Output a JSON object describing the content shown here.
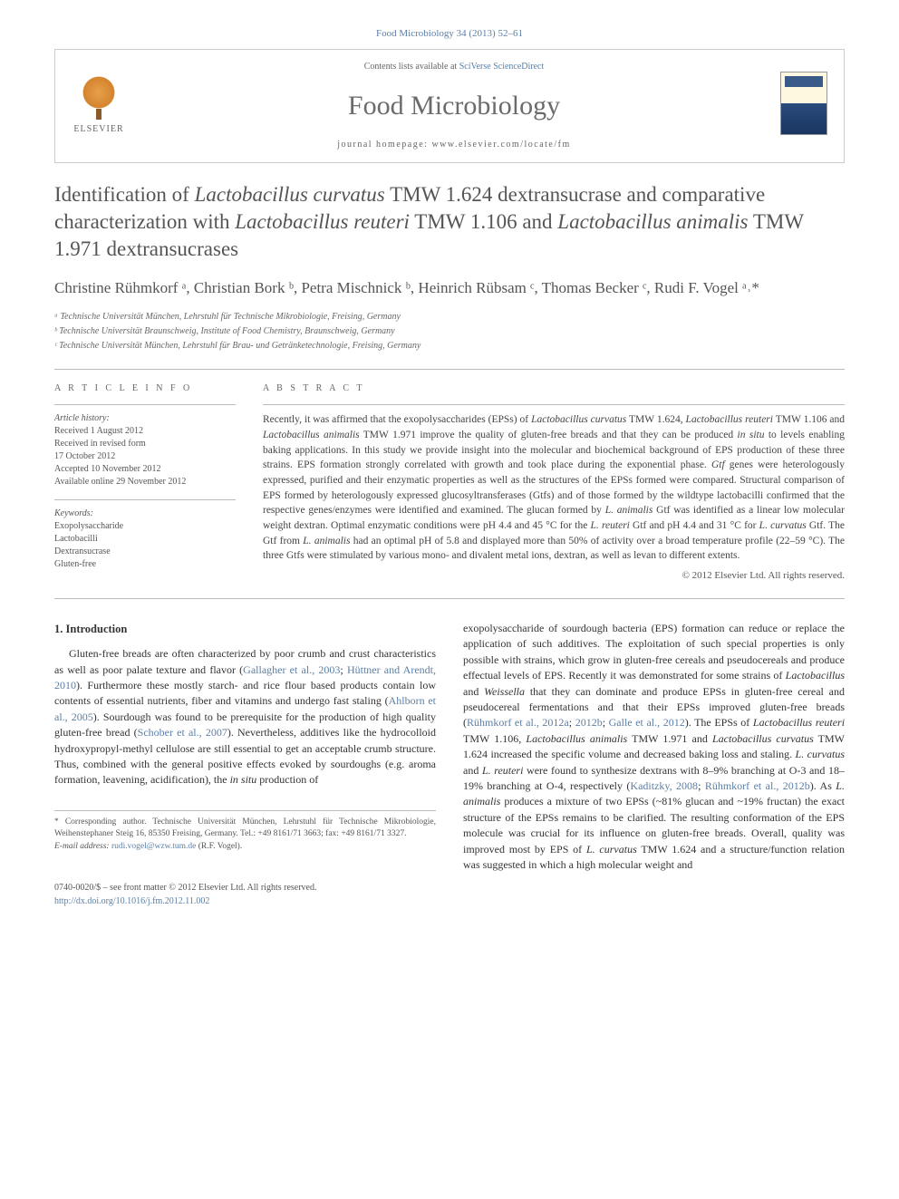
{
  "citation": "Food Microbiology 34 (2013) 52–61",
  "banner": {
    "publisher": "ELSEVIER",
    "contents_prefix": "Contents lists available at ",
    "contents_link": "SciVerse ScienceDirect",
    "journal_name": "Food Microbiology",
    "homepage_prefix": "journal homepage: ",
    "homepage_url": "www.elsevier.com/locate/fm"
  },
  "title_parts": [
    {
      "t": "Identification of ",
      "i": false
    },
    {
      "t": "Lactobacillus curvatus",
      "i": true
    },
    {
      "t": " TMW 1.624 dextransucrase and comparative characterization with ",
      "i": false
    },
    {
      "t": "Lactobacillus reuteri",
      "i": true
    },
    {
      "t": " TMW 1.106 and ",
      "i": false
    },
    {
      "t": "Lactobacillus animalis",
      "i": true
    },
    {
      "t": " TMW 1.971 dextransucrases",
      "i": false
    }
  ],
  "authors": "Christine Rühmkorf ᵃ, Christian Bork ᵇ, Petra Mischnick ᵇ, Heinrich Rübsam ᶜ, Thomas Becker ᶜ, Rudi F. Vogel ᵃ˒*",
  "affiliations": [
    "ᵃ Technische Universität München, Lehrstuhl für Technische Mikrobiologie, Freising, Germany",
    "ᵇ Technische Universität Braunschweig, Institute of Food Chemistry, Braunschweig, Germany",
    "ᶜ Technische Universität München, Lehrstuhl für Brau- und Getränketechnologie, Freising, Germany"
  ],
  "article_info_label": "A R T I C L E   I N F O",
  "abstract_label": "A B S T R A C T",
  "history_label": "Article history:",
  "history": [
    "Received 1 August 2012",
    "Received in revised form",
    "17 October 2012",
    "Accepted 10 November 2012",
    "Available online 29 November 2012"
  ],
  "keywords_label": "Keywords:",
  "keywords": [
    "Exopolysaccharide",
    "Lactobacilli",
    "Dextransucrase",
    "Gluten-free"
  ],
  "abstract_runs": [
    {
      "t": "Recently, it was affirmed that the exopolysaccharides (EPSs) of ",
      "i": false
    },
    {
      "t": "Lactobacillus curvatus",
      "i": true
    },
    {
      "t": " TMW 1.624, ",
      "i": false
    },
    {
      "t": "Lactobacillus reuteri",
      "i": true
    },
    {
      "t": " TMW 1.106 and ",
      "i": false
    },
    {
      "t": "Lactobacillus animalis",
      "i": true
    },
    {
      "t": " TMW 1.971 improve the quality of gluten-free breads and that they can be produced ",
      "i": false
    },
    {
      "t": "in situ",
      "i": true
    },
    {
      "t": " to levels enabling baking applications. In this study we provide insight into the molecular and biochemical background of EPS production of these three strains. EPS formation strongly correlated with growth and took place during the exponential phase. ",
      "i": false
    },
    {
      "t": "Gtf",
      "i": true
    },
    {
      "t": " genes were heterologously expressed, purified and their enzymatic properties as well as the structures of the EPSs formed were compared. Structural comparison of EPS formed by heterologously expressed glucosyltransferases (Gtfs) and of those formed by the wildtype lactobacilli confirmed that the respective genes/enzymes were identified and examined. The glucan formed by ",
      "i": false
    },
    {
      "t": "L. animalis",
      "i": true
    },
    {
      "t": " Gtf was identified as a linear low molecular weight dextran. Optimal enzymatic conditions were pH 4.4 and 45 °C for the ",
      "i": false
    },
    {
      "t": "L. reuteri",
      "i": true
    },
    {
      "t": " Gtf and pH 4.4 and 31 °C for ",
      "i": false
    },
    {
      "t": "L. curvatus",
      "i": true
    },
    {
      "t": " Gtf. The Gtf from ",
      "i": false
    },
    {
      "t": "L. animalis",
      "i": true
    },
    {
      "t": " had an optimal pH of 5.8 and displayed more than 50% of activity over a broad temperature profile (22–59 °C). The three Gtfs were stimulated by various mono- and divalent metal ions, dextran, as well as levan to different extents.",
      "i": false
    }
  ],
  "copyright": "© 2012 Elsevier Ltd. All rights reserved.",
  "intro_heading": "1. Introduction",
  "intro_left_runs": [
    {
      "t": "Gluten-free breads are often characterized by poor crumb and crust characteristics as well as poor palate texture and flavor (",
      "i": false
    },
    {
      "t": "Gallagher et al., 2003",
      "c": true
    },
    {
      "t": "; ",
      "i": false
    },
    {
      "t": "Hüttner and Arendt, 2010",
      "c": true
    },
    {
      "t": "). Furthermore these mostly starch- and rice flour based products contain low contents of essential nutrients, fiber and vitamins and undergo fast staling (",
      "i": false
    },
    {
      "t": "Ahlborn et al., 2005",
      "c": true
    },
    {
      "t": "). Sourdough was found to be prerequisite for the production of high quality gluten-free bread (",
      "i": false
    },
    {
      "t": "Schober et al., 2007",
      "c": true
    },
    {
      "t": "). Nevertheless, additives like the hydrocolloid hydroxypropyl-methyl cellulose are still essential to get an acceptable crumb structure. Thus, combined with the general positive effects evoked by sourdoughs (e.g. aroma formation, leavening, acidification), the ",
      "i": false
    },
    {
      "t": "in situ",
      "i": true
    },
    {
      "t": " production of",
      "i": false
    }
  ],
  "intro_right_runs": [
    {
      "t": "exopolysaccharide of sourdough bacteria (EPS) formation can reduce or replace the application of such additives. The exploitation of such special properties is only possible with strains, which grow in gluten-free cereals and pseudocereals and produce effectual levels of EPS. Recently it was demonstrated for some strains of ",
      "i": false
    },
    {
      "t": "Lactobacillus",
      "i": true
    },
    {
      "t": " and ",
      "i": false
    },
    {
      "t": "Weissella",
      "i": true
    },
    {
      "t": " that they can dominate and produce EPSs in gluten-free cereal and pseudocereal fermentations and that their EPSs improved gluten-free breads (",
      "i": false
    },
    {
      "t": "Rühmkorf et al., 2012a",
      "c": true
    },
    {
      "t": "; ",
      "i": false
    },
    {
      "t": "2012b",
      "c": true
    },
    {
      "t": "; ",
      "i": false
    },
    {
      "t": "Galle et al., 2012",
      "c": true
    },
    {
      "t": "). The EPSs of ",
      "i": false
    },
    {
      "t": "Lactobacillus reuteri",
      "i": true
    },
    {
      "t": " TMW 1.106, ",
      "i": false
    },
    {
      "t": "Lactobacillus animalis",
      "i": true
    },
    {
      "t": " TMW 1.971 and ",
      "i": false
    },
    {
      "t": "Lactobacillus curvatus",
      "i": true
    },
    {
      "t": " TMW 1.624 increased the specific volume and decreased baking loss and staling. ",
      "i": false
    },
    {
      "t": "L. curvatus",
      "i": true
    },
    {
      "t": " and ",
      "i": false
    },
    {
      "t": "L. reuteri",
      "i": true
    },
    {
      "t": " were found to synthesize dextrans with 8–9% branching at O-3 and 18–19% branching at O-4, respectively (",
      "i": false
    },
    {
      "t": "Kaditzky, 2008",
      "c": true
    },
    {
      "t": "; ",
      "i": false
    },
    {
      "t": "Rühmkorf et al., 2012b",
      "c": true
    },
    {
      "t": "). As ",
      "i": false
    },
    {
      "t": "L. animalis",
      "i": true
    },
    {
      "t": " produces a mixture of two EPSs (~81% glucan and ~19% fructan) the exact structure of the EPSs remains to be clarified. The resulting conformation of the EPS molecule was crucial for its influence on gluten-free breads. Overall, quality was improved most by EPS of ",
      "i": false
    },
    {
      "t": "L. curvatus",
      "i": true
    },
    {
      "t": " TMW 1.624 and a structure/function relation was suggested in which a high molecular weight and",
      "i": false
    }
  ],
  "corr_author": "* Corresponding author. Technische Universität München, Lehrstuhl für Technische Mikrobiologie, Weihenstephaner Steig 16, 85350 Freising, Germany. Tel.: +49 8161/71 3663; fax: +49 8161/71 3327.",
  "email_label": "E-mail address:",
  "email": "rudi.vogel@wzw.tum.de",
  "email_suffix": "(R.F. Vogel).",
  "issn_line": "0740-0020/$ – see front matter © 2012 Elsevier Ltd. All rights reserved.",
  "doi_url": "http://dx.doi.org/10.1016/j.fm.2012.11.002",
  "colors": {
    "link": "#5b7fa6",
    "text": "#333333",
    "muted": "#666666",
    "rule": "#bbbbbb"
  }
}
